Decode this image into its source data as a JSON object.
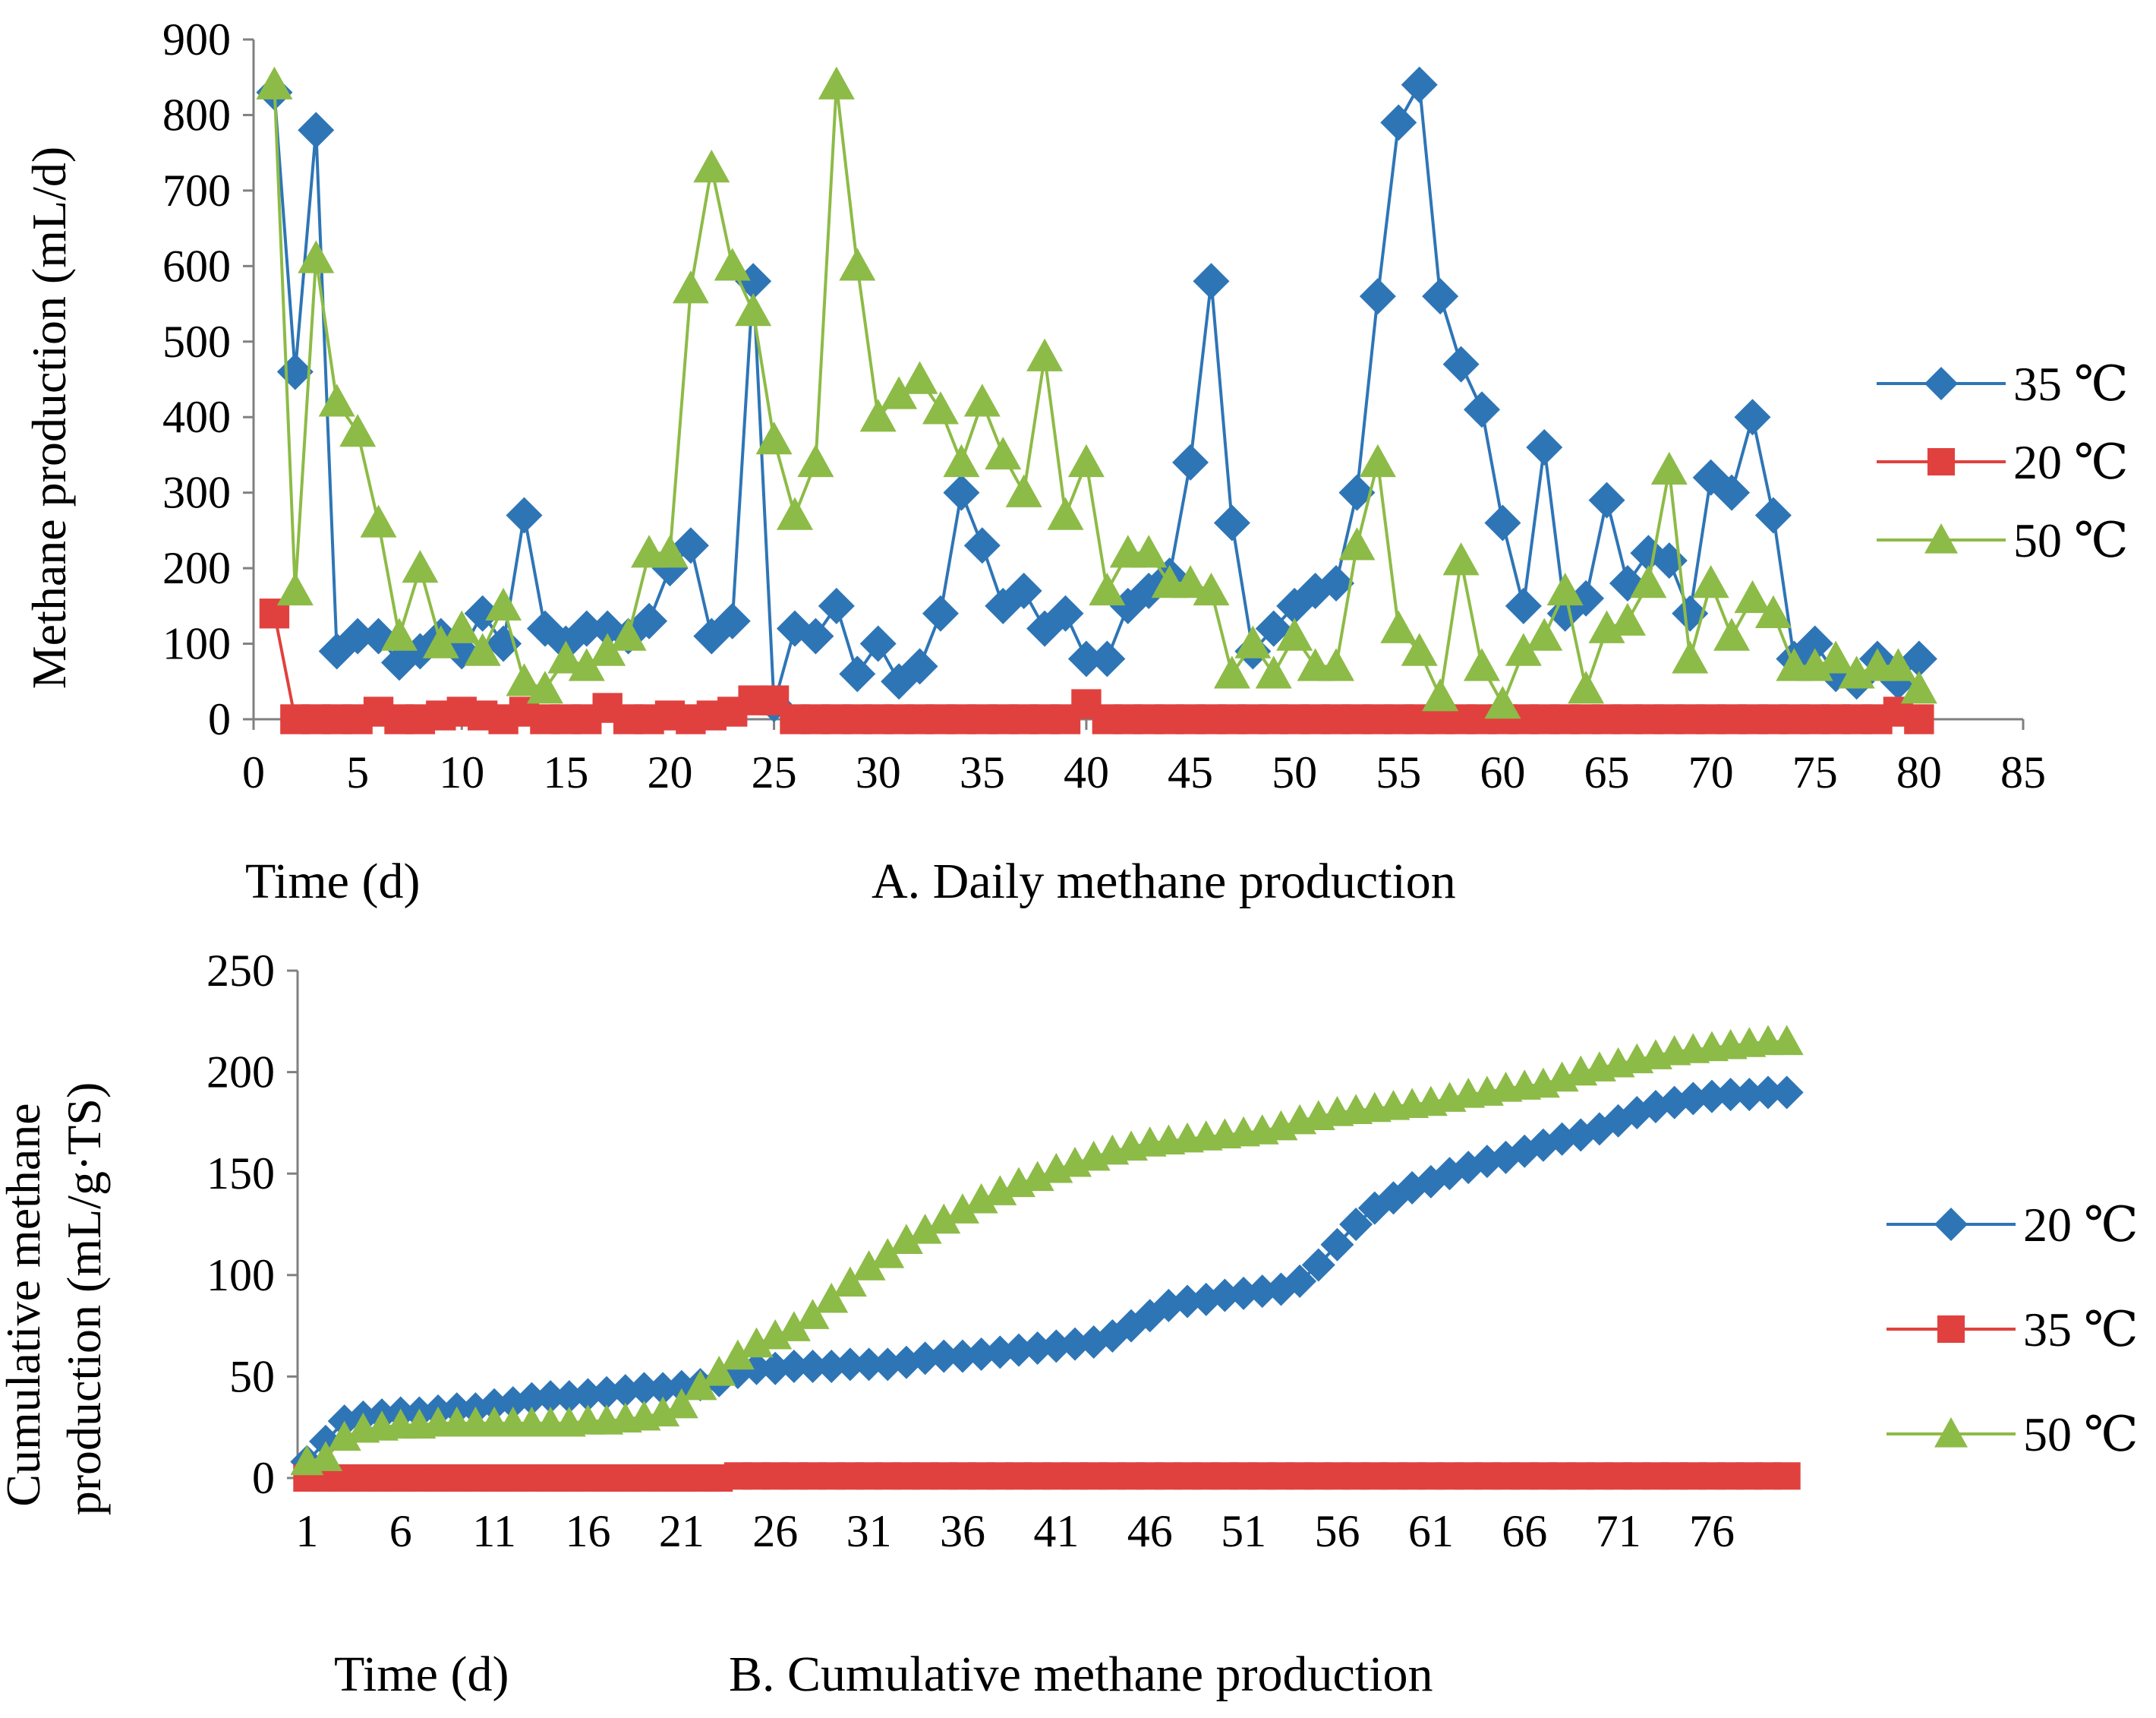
{
  "chart_data": [
    {
      "type": "line",
      "title": "A. Daily methane production",
      "xlabel": "Time (d)",
      "ylabel": "Methane production (mL/d)",
      "xlim": [
        0,
        85
      ],
      "ylim": [
        0,
        900
      ],
      "xticks": [
        0,
        5,
        10,
        15,
        20,
        25,
        30,
        35,
        40,
        45,
        50,
        55,
        60,
        65,
        70,
        75,
        80,
        85
      ],
      "yticks": [
        0,
        100,
        200,
        300,
        400,
        500,
        600,
        700,
        800,
        900
      ],
      "legend_position": "right",
      "series": [
        {
          "name": "35 ℃",
          "marker": "diamond",
          "color": "#2e75b6",
          "x": [
            1,
            2,
            3,
            4,
            5,
            6,
            7,
            8,
            9,
            10,
            11,
            12,
            13,
            14,
            15,
            16,
            17,
            18,
            19,
            20,
            21,
            22,
            23,
            24,
            25,
            26,
            27,
            28,
            29,
            30,
            31,
            32,
            33,
            34,
            35,
            36,
            37,
            38,
            39,
            40,
            41,
            42,
            43,
            44,
            45,
            46,
            47,
            48,
            49,
            50,
            51,
            52,
            53,
            54,
            55,
            56,
            57,
            58,
            59,
            60,
            61,
            62,
            63,
            64,
            65,
            66,
            67,
            68,
            69,
            70,
            71,
            72,
            73,
            74,
            75,
            76,
            77,
            78,
            79,
            80
          ],
          "values": [
            830,
            460,
            780,
            90,
            110,
            110,
            75,
            90,
            110,
            90,
            140,
            100,
            270,
            120,
            100,
            120,
            120,
            110,
            130,
            200,
            230,
            110,
            130,
            580,
            20,
            120,
            110,
            150,
            60,
            100,
            50,
            70,
            140,
            300,
            230,
            150,
            170,
            120,
            140,
            80,
            80,
            150,
            170,
            190,
            340,
            580,
            260,
            90,
            120,
            150,
            170,
            180,
            300,
            560,
            790,
            840,
            560,
            470,
            410,
            260,
            150,
            360,
            140,
            160,
            290,
            180,
            220,
            210,
            140,
            320,
            300,
            400,
            270,
            80,
            100,
            60,
            50,
            80,
            50,
            80
          ]
        },
        {
          "name": "20 ℃",
          "marker": "square",
          "color": "#e0413e",
          "x": [
            1,
            2,
            3,
            4,
            5,
            6,
            7,
            8,
            9,
            10,
            11,
            12,
            13,
            14,
            15,
            16,
            17,
            18,
            19,
            20,
            21,
            22,
            23,
            24,
            25,
            26,
            27,
            28,
            29,
            30,
            31,
            32,
            33,
            34,
            35,
            36,
            37,
            38,
            39,
            40,
            41,
            42,
            43,
            44,
            45,
            46,
            47,
            48,
            49,
            50,
            51,
            52,
            53,
            54,
            55,
            56,
            57,
            58,
            59,
            60,
            61,
            62,
            63,
            64,
            65,
            66,
            67,
            68,
            69,
            70,
            71,
            72,
            73,
            74,
            75,
            76,
            77,
            78,
            79,
            80
          ],
          "values": [
            140,
            0,
            0,
            0,
            0,
            10,
            0,
            0,
            5,
            10,
            5,
            0,
            10,
            0,
            0,
            0,
            15,
            0,
            0,
            5,
            0,
            5,
            10,
            25,
            25,
            0,
            0,
            0,
            0,
            0,
            0,
            0,
            0,
            0,
            0,
            0,
            0,
            0,
            0,
            20,
            0,
            0,
            0,
            0,
            0,
            0,
            0,
            0,
            0,
            0,
            0,
            0,
            0,
            0,
            0,
            0,
            0,
            0,
            0,
            0,
            0,
            0,
            0,
            0,
            0,
            0,
            0,
            0,
            0,
            0,
            0,
            0,
            0,
            0,
            0,
            0,
            0,
            0,
            10,
            0
          ]
        },
        {
          "name": "50 ℃",
          "marker": "triangle",
          "color": "#8dbb47",
          "x": [
            1,
            2,
            3,
            4,
            5,
            6,
            7,
            8,
            9,
            10,
            11,
            12,
            13,
            14,
            15,
            16,
            17,
            18,
            19,
            20,
            21,
            22,
            23,
            24,
            25,
            26,
            27,
            28,
            29,
            30,
            31,
            32,
            33,
            34,
            35,
            36,
            37,
            38,
            39,
            40,
            41,
            42,
            43,
            44,
            45,
            46,
            47,
            48,
            49,
            50,
            51,
            52,
            53,
            54,
            55,
            56,
            57,
            58,
            59,
            60,
            61,
            62,
            63,
            64,
            65,
            66,
            67,
            68,
            69,
            70,
            71,
            72,
            73,
            74,
            75,
            76,
            77,
            78,
            79,
            80
          ],
          "values": [
            840,
            170,
            610,
            420,
            380,
            260,
            110,
            200,
            100,
            120,
            90,
            150,
            50,
            40,
            80,
            70,
            90,
            110,
            220,
            220,
            570,
            730,
            600,
            540,
            370,
            270,
            340,
            840,
            600,
            400,
            430,
            450,
            410,
            340,
            420,
            350,
            300,
            480,
            270,
            340,
            170,
            220,
            220,
            180,
            180,
            170,
            60,
            100,
            60,
            110,
            70,
            70,
            230,
            340,
            120,
            90,
            30,
            210,
            70,
            20,
            90,
            110,
            170,
            40,
            120,
            130,
            180,
            330,
            80,
            180,
            110,
            160,
            140,
            70,
            70,
            80,
            60,
            70,
            70,
            40
          ]
        }
      ]
    },
    {
      "type": "line",
      "title": "B. Cumulative methane production",
      "xlabel": "Time (d)",
      "ylabel": "Cumulative methane production (mL/g·TS)",
      "xlim": [
        1,
        80
      ],
      "ylim": [
        0,
        250
      ],
      "xticks": [
        1,
        6,
        11,
        16,
        21,
        26,
        31,
        36,
        41,
        46,
        51,
        56,
        61,
        66,
        71,
        76
      ],
      "yticks": [
        0,
        50,
        100,
        150,
        200,
        250
      ],
      "legend_position": "right",
      "series": [
        {
          "name": "20 ℃",
          "marker": "diamond",
          "color": "#2e75b6",
          "x": [
            1,
            2,
            3,
            4,
            5,
            6,
            7,
            8,
            9,
            10,
            11,
            12,
            13,
            14,
            15,
            16,
            17,
            18,
            19,
            20,
            21,
            22,
            23,
            24,
            25,
            26,
            27,
            28,
            29,
            30,
            31,
            32,
            33,
            34,
            35,
            36,
            37,
            38,
            39,
            40,
            41,
            42,
            43,
            44,
            45,
            46,
            47,
            48,
            49,
            50,
            51,
            52,
            53,
            54,
            55,
            56,
            57,
            58,
            59,
            60,
            61,
            62,
            63,
            64,
            65,
            66,
            67,
            68,
            69,
            70,
            71,
            72,
            73,
            74,
            75,
            76,
            77,
            78,
            79,
            80
          ],
          "values": [
            8,
            18,
            28,
            30,
            31,
            32,
            32,
            33,
            34,
            34,
            36,
            37,
            39,
            40,
            40,
            41,
            42,
            43,
            44,
            44,
            45,
            46,
            48,
            52,
            54,
            54,
            55,
            55,
            55,
            56,
            56,
            56,
            57,
            59,
            60,
            60,
            61,
            62,
            63,
            64,
            65,
            66,
            67,
            70,
            75,
            80,
            85,
            87,
            88,
            90,
            91,
            92,
            93,
            97,
            105,
            115,
            125,
            133,
            138,
            143,
            146,
            150,
            153,
            156,
            158,
            161,
            164,
            167,
            169,
            172,
            176,
            180,
            183,
            185,
            187,
            188,
            189,
            189,
            190,
            190
          ]
        },
        {
          "name": "35 ℃",
          "marker": "square",
          "color": "#e0413e",
          "x": [
            1,
            2,
            3,
            4,
            5,
            6,
            7,
            8,
            9,
            10,
            11,
            12,
            13,
            14,
            15,
            16,
            17,
            18,
            19,
            20,
            21,
            22,
            23,
            24,
            25,
            26,
            27,
            28,
            29,
            30,
            31,
            32,
            33,
            34,
            35,
            36,
            37,
            38,
            39,
            40,
            41,
            42,
            43,
            44,
            45,
            46,
            47,
            48,
            49,
            50,
            51,
            52,
            53,
            54,
            55,
            56,
            57,
            58,
            59,
            60,
            61,
            62,
            63,
            64,
            65,
            66,
            67,
            68,
            69,
            70,
            71,
            72,
            73,
            74,
            75,
            76,
            77,
            78,
            79,
            80
          ],
          "values": [
            0,
            0,
            0,
            0,
            0,
            0,
            0,
            0,
            0,
            0,
            0,
            0,
            0,
            0,
            0,
            0,
            0,
            0,
            0,
            0,
            0,
            0,
            0,
            1,
            1,
            1,
            1,
            1,
            1,
            1,
            1,
            1,
            1,
            1,
            1,
            1,
            1,
            1,
            1,
            1,
            1,
            1,
            1,
            1,
            1,
            1,
            1,
            1,
            1,
            1,
            1,
            1,
            1,
            1,
            1,
            1,
            1,
            1,
            1,
            1,
            1,
            1,
            1,
            1,
            1,
            1,
            1,
            1,
            1,
            1,
            1,
            1,
            1,
            1,
            1,
            1,
            1,
            1,
            1,
            1
          ]
        },
        {
          "name": "50 ℃",
          "marker": "triangle",
          "color": "#8dbb47",
          "x": [
            1,
            2,
            3,
            4,
            5,
            6,
            7,
            8,
            9,
            10,
            11,
            12,
            13,
            14,
            15,
            16,
            17,
            18,
            19,
            20,
            21,
            22,
            23,
            24,
            25,
            26,
            27,
            28,
            29,
            30,
            31,
            32,
            33,
            34,
            35,
            36,
            37,
            38,
            39,
            40,
            41,
            42,
            43,
            44,
            45,
            46,
            47,
            48,
            49,
            50,
            51,
            52,
            53,
            54,
            55,
            56,
            57,
            58,
            59,
            60,
            61,
            62,
            63,
            64,
            65,
            66,
            67,
            68,
            69,
            70,
            71,
            72,
            73,
            74,
            75,
            76,
            77,
            78,
            79,
            80
          ],
          "values": [
            8,
            10,
            20,
            24,
            25,
            26,
            26,
            27,
            27,
            27,
            27,
            27,
            27,
            27,
            27,
            28,
            28,
            29,
            30,
            32,
            36,
            45,
            52,
            60,
            66,
            70,
            74,
            80,
            88,
            96,
            104,
            110,
            117,
            122,
            127,
            132,
            137,
            141,
            145,
            148,
            152,
            155,
            158,
            161,
            163,
            165,
            166,
            167,
            168,
            169,
            170,
            171,
            173,
            176,
            178,
            180,
            181,
            182,
            183,
            184,
            185,
            187,
            189,
            190,
            192,
            193,
            194,
            197,
            200,
            202,
            204,
            206,
            208,
            210,
            211,
            212,
            213,
            214,
            215,
            215
          ]
        }
      ]
    }
  ]
}
